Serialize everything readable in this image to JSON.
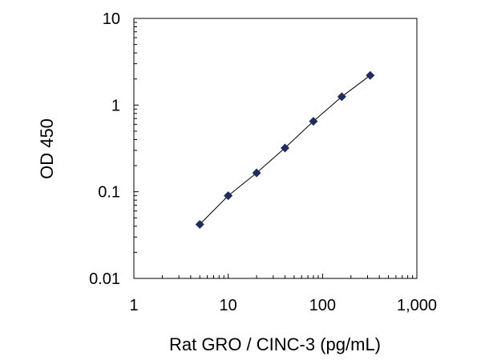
{
  "chart_data": {
    "type": "scatter",
    "title": "",
    "xlabel": "Rat GRO / CINC-3 (pg/mL)",
    "ylabel": "OD 450",
    "x_scale": "log",
    "y_scale": "log",
    "xlim": [
      1,
      1000
    ],
    "ylim": [
      0.01,
      10
    ],
    "x_ticks": [
      1,
      10,
      100,
      1000
    ],
    "x_tick_labels": [
      "1",
      "10",
      "100",
      "1,000"
    ],
    "y_ticks": [
      0.01,
      0.1,
      1,
      10
    ],
    "y_tick_labels": [
      "0.01",
      "0.1",
      "1",
      "10"
    ],
    "grid": false,
    "legend": "none",
    "series": [
      {
        "x": [
          5,
          10,
          20,
          40,
          80,
          160,
          320
        ],
        "y": [
          0.042,
          0.09,
          0.165,
          0.32,
          0.65,
          1.25,
          2.2
        ],
        "marker": "diamond",
        "marker_color": "#1f2d5c",
        "line_color": "#000000",
        "fit_line": true
      }
    ]
  }
}
